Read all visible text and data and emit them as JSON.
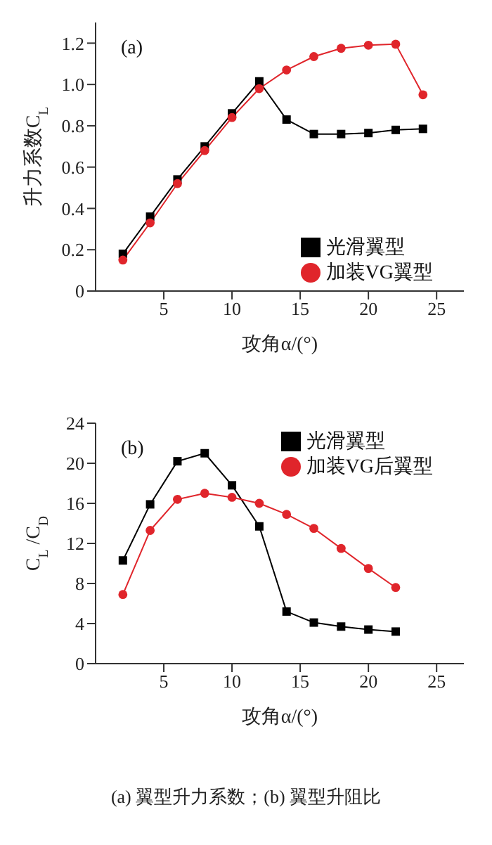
{
  "chart_data": [
    {
      "type": "line",
      "xlabel": "攻角α/(°)",
      "ylabel": "升力系数C$_{L}$",
      "annotations": [
        "(a)"
      ],
      "x": [
        2,
        4,
        6,
        8,
        10,
        12,
        14,
        16,
        18,
        20,
        22,
        24
      ],
      "series": [
        {
          "name": "光滑翼型",
          "color": "#000000",
          "marker": "square",
          "values": [
            0.18,
            0.36,
            0.54,
            0.7,
            0.86,
            1.015,
            0.83,
            0.76,
            0.76,
            0.765,
            0.78,
            0.785
          ]
        },
        {
          "name": "加装VG翼型",
          "color": "#e0252b",
          "marker": "circle",
          "values": [
            0.15,
            0.33,
            0.52,
            0.68,
            0.84,
            0.98,
            1.07,
            1.135,
            1.175,
            1.19,
            1.195,
            0.95
          ]
        }
      ],
      "xlim": [
        0,
        27
      ],
      "xticks": [
        5,
        10,
        15,
        20,
        25
      ],
      "ylim": [
        0,
        1.3
      ],
      "yticks": [
        0,
        0.2,
        0.4,
        0.6,
        0.8,
        {
          "value": 1.0,
          "label": "1.0"
        },
        1.2
      ],
      "grid": false,
      "legend": "bottom right"
    },
    {
      "type": "line",
      "xlabel": "攻角α/(°)",
      "ylabel": "C$_{L}$/C$_{D}$",
      "annotations": [
        "(b)",
        "(a) 翼型升力系数；(b) 翼型升阻比"
      ],
      "x": [
        2,
        4,
        6,
        8,
        10,
        12,
        14,
        16,
        18,
        20,
        22
      ],
      "series": [
        {
          "name": "光滑翼型",
          "color": "#000000",
          "marker": "square",
          "values": [
            10.3,
            15.9,
            20.2,
            21.0,
            17.8,
            13.7,
            5.2,
            4.1,
            3.7,
            3.4,
            3.2
          ]
        },
        {
          "name": "加装VG后翼型",
          "color": "#e0252b",
          "marker": "circle",
          "values": [
            6.9,
            13.3,
            16.4,
            17.0,
            16.6,
            16.0,
            14.9,
            13.5,
            11.5,
            9.5,
            7.6
          ]
        }
      ],
      "xlim": [
        0,
        27
      ],
      "xticks": [
        5,
        10,
        15,
        20,
        25
      ],
      "ylim": [
        0,
        24
      ],
      "yticks": [
        0,
        4,
        8,
        12,
        16,
        20,
        24
      ],
      "grid": false,
      "legend": "top right"
    }
  ]
}
